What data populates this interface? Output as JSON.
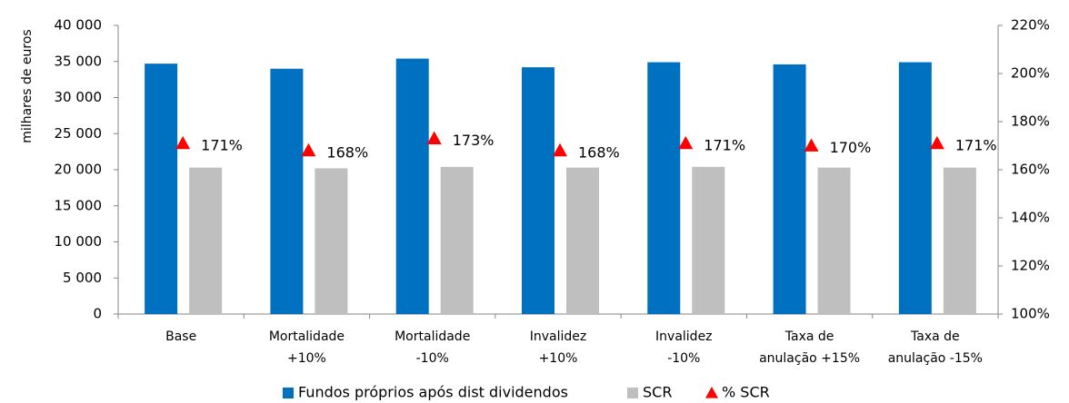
{
  "chart_data": {
    "type": "bar",
    "y_label": "milhares de euros",
    "categories": [
      [
        "Base"
      ],
      [
        "Mortalidade",
        "+10%"
      ],
      [
        "Mortalidade",
        "-10%"
      ],
      [
        "Invalidez",
        "+10%"
      ],
      [
        "Invalidez",
        "-10%"
      ],
      [
        "Taxa de",
        "anulação +15%"
      ],
      [
        "Taxa de",
        "anulação -15%"
      ]
    ],
    "series": [
      {
        "name": "Fundos próprios após dist dividendos",
        "color": "#0070c0",
        "values": [
          34700,
          34000,
          35400,
          34200,
          34900,
          34600,
          34900
        ]
      },
      {
        "name": "SCR",
        "color": "#bfbfbf",
        "values": [
          20300,
          20200,
          20400,
          20300,
          20400,
          20300,
          20300
        ]
      },
      {
        "name": "% SCR",
        "color": "#ff0000",
        "axis": "y2",
        "marker": "triangle",
        "values": [
          171,
          168,
          173,
          168,
          171,
          170,
          171
        ],
        "value_labels": [
          "171%",
          "168%",
          "173%",
          "168%",
          "171%",
          "170%",
          "171%"
        ]
      }
    ],
    "ylim": [
      0,
      40000
    ],
    "yticks": [
      0,
      {
        "value": 5000,
        "label": "5 000"
      },
      {
        "value": 10000,
        "label": "10 000"
      },
      {
        "value": 15000,
        "label": "15 000"
      },
      {
        "value": 20000,
        "label": "20 000"
      },
      {
        "value": 25000,
        "label": "25 000"
      },
      {
        "value": 30000,
        "label": "30 000"
      },
      {
        "value": 35000,
        "label": "35 000"
      },
      {
        "value": 40000,
        "label": "40 000"
      }
    ],
    "y2lim": [
      100,
      220
    ],
    "y2ticks": [
      {
        "value": 100,
        "label": "100%"
      },
      {
        "value": 120,
        "label": "120%"
      },
      {
        "value": 140,
        "label": "140%"
      },
      {
        "value": 160,
        "label": "160%"
      },
      {
        "value": 180,
        "label": "180%"
      },
      {
        "value": 200,
        "label": "200%"
      },
      {
        "value": 220,
        "label": "220%"
      }
    ],
    "legend": "bottom"
  }
}
